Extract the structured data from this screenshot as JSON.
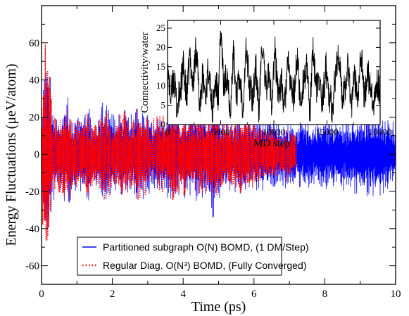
{
  "chart_data": [
    {
      "type": "line",
      "xlabel": "Time (ps)",
      "ylabel": "Energy Fluctuations (μeV/atom)",
      "xlim": [
        0,
        10
      ],
      "ylim": [
        -70,
        80
      ],
      "xticks": [
        0,
        2,
        4,
        6,
        8,
        10
      ],
      "yticks": [
        -60,
        -40,
        -20,
        0,
        20,
        40,
        60
      ],
      "xtick_labels": [
        "0",
        "2",
        "4",
        "6",
        "8",
        "10"
      ],
      "ytick_labels": [
        "-60",
        "-40",
        "-20",
        "0",
        "20",
        "40",
        "60"
      ],
      "grid": false,
      "legend_position": "bottom-center",
      "series": [
        {
          "name": "Partitioned subgraph O(N) BOMD, (1 DM/Step)",
          "color": "#0000ff",
          "style": "solid",
          "x_range": [
            0,
            10
          ],
          "envelope": {
            "x": [
              0,
              0.05,
              0.12,
              0.2,
              0.3,
              0.45,
              0.6,
              0.75,
              0.9,
              1.1,
              1.3,
              1.5,
              1.7,
              1.9,
              2.1,
              2.3,
              2.5,
              2.7,
              2.9,
              3.1,
              3.3,
              3.5,
              3.7,
              3.9,
              4.1,
              4.3,
              4.5,
              4.7,
              4.85,
              4.95,
              5.1,
              5.3,
              5.5,
              5.7,
              5.9,
              6.1,
              6.3,
              6.5,
              6.7,
              6.9,
              7.1,
              7.3,
              7.5,
              7.7,
              7.9,
              8.1,
              8.3,
              8.5,
              8.7,
              8.9,
              9.1,
              9.3,
              9.5,
              9.7,
              9.9,
              10
            ],
            "upper": [
              10,
              42,
              50,
              58,
              30,
              18,
              26,
              34,
              20,
              22,
              28,
              18,
              30,
              26,
              22,
              28,
              22,
              30,
              26,
              20,
              26,
              24,
              28,
              22,
              26,
              24,
              28,
              24,
              32,
              26,
              24,
              20,
              22,
              26,
              20,
              24,
              20,
              22,
              18,
              20,
              18,
              20,
              22,
              18,
              20,
              22,
              18,
              22,
              20,
              24,
              22,
              26,
              30,
              22,
              20,
              14
            ],
            "lower": [
              -10,
              -40,
              -52,
              -56,
              -30,
              -20,
              -26,
              -30,
              -22,
              -20,
              -30,
              -18,
              -28,
              -26,
              -20,
              -28,
              -22,
              -30,
              -26,
              -20,
              -24,
              -24,
              -30,
              -22,
              -26,
              -24,
              -28,
              -24,
              -36,
              -28,
              -24,
              -20,
              -22,
              -26,
              -20,
              -24,
              -20,
              -22,
              -18,
              -20,
              -18,
              -20,
              -22,
              -18,
              -20,
              -22,
              -18,
              -22,
              -20,
              -24,
              -22,
              -26,
              -28,
              -22,
              -20,
              -14
            ]
          }
        },
        {
          "name": "Regular Diag. O(N³) BOMD, (Fully Converged)",
          "color": "#ff0000",
          "style": "dotted",
          "x_range": [
            0,
            7.2
          ],
          "envelope": {
            "x": [
              0,
              0.05,
              0.12,
              0.2,
              0.3,
              0.45,
              0.6,
              0.75,
              0.9,
              1.1,
              1.3,
              1.5,
              1.7,
              1.9,
              2.1,
              2.3,
              2.5,
              2.7,
              2.9,
              3.1,
              3.3,
              3.5,
              3.7,
              3.9,
              4.1,
              4.3,
              4.5,
              4.7,
              4.85,
              4.95,
              5.1,
              5.3,
              5.5,
              5.7,
              5.9,
              6.1,
              6.3,
              6.5,
              6.7,
              6.9,
              7.1,
              7.2
            ],
            "upper": [
              30,
              60,
              66,
              48,
              28,
              18,
              24,
              30,
              18,
              20,
              26,
              16,
              28,
              24,
              20,
              26,
              20,
              28,
              24,
              18,
              24,
              22,
              26,
              20,
              24,
              22,
              26,
              22,
              30,
              24,
              22,
              18,
              20,
              24,
              18,
              20,
              16,
              18,
              14,
              16,
              14,
              12
            ],
            "lower": [
              -30,
              -55,
              -60,
              -46,
              -28,
              -20,
              -24,
              -28,
              -20,
              -18,
              -28,
              -16,
              -26,
              -24,
              -18,
              -26,
              -20,
              -28,
              -24,
              -18,
              -22,
              -22,
              -28,
              -20,
              -24,
              -22,
              -26,
              -22,
              -34,
              -26,
              -22,
              -18,
              -20,
              -24,
              -18,
              -20,
              -16,
              -18,
              -14,
              -16,
              -14,
              -12
            ]
          }
        }
      ]
    },
    {
      "type": "line",
      "xlabel": "MD step",
      "ylabel": "Connectivity/water",
      "xlim": [
        0,
        20000
      ],
      "ylim": [
        0,
        27
      ],
      "xticks": [
        0,
        5000,
        10000,
        15000,
        20000
      ],
      "yticks": [
        0,
        5,
        10,
        15,
        20,
        25
      ],
      "xtick_labels": [
        "0",
        "5000",
        "10000",
        "15000",
        "20000"
      ],
      "ytick_labels": [
        "0",
        "5",
        "10",
        "15",
        "20",
        "25"
      ],
      "grid": false,
      "series": [
        {
          "color": "#000000",
          "x": [
            0,
            300,
            600,
            900,
            1200,
            1500,
            1800,
            2100,
            2400,
            2700,
            3000,
            3300,
            3600,
            3900,
            4200,
            4500,
            4800,
            5000,
            5300,
            5600,
            5900,
            6200,
            6500,
            6800,
            7100,
            7400,
            7700,
            8000,
            8300,
            8600,
            8900,
            9200,
            9500,
            9800,
            10100,
            10400,
            10700,
            11000,
            11300,
            11600,
            11900,
            12200,
            12500,
            12800,
            13100,
            13400,
            13700,
            14000,
            14300,
            14600,
            14900,
            15200,
            15500,
            15800,
            16100,
            16400,
            16700,
            17000,
            17300,
            17600,
            17900,
            18200,
            18500,
            18800,
            19100,
            19400,
            19700,
            20000
          ],
          "y": [
            14,
            7,
            12,
            4,
            9,
            15,
            6,
            18,
            10,
            21,
            5,
            12,
            8,
            16,
            3,
            11,
            7,
            25,
            9,
            14,
            4,
            18,
            8,
            12,
            5,
            20,
            10,
            7,
            15,
            3,
            22,
            9,
            13,
            6,
            19,
            8,
            11,
            4,
            16,
            10,
            7,
            18,
            5,
            12,
            14,
            3,
            20,
            9,
            11,
            6,
            15,
            8,
            4,
            13,
            19,
            7,
            10,
            16,
            5,
            12,
            8,
            20,
            6,
            14,
            9,
            3,
            11,
            9
          ]
        }
      ]
    }
  ]
}
